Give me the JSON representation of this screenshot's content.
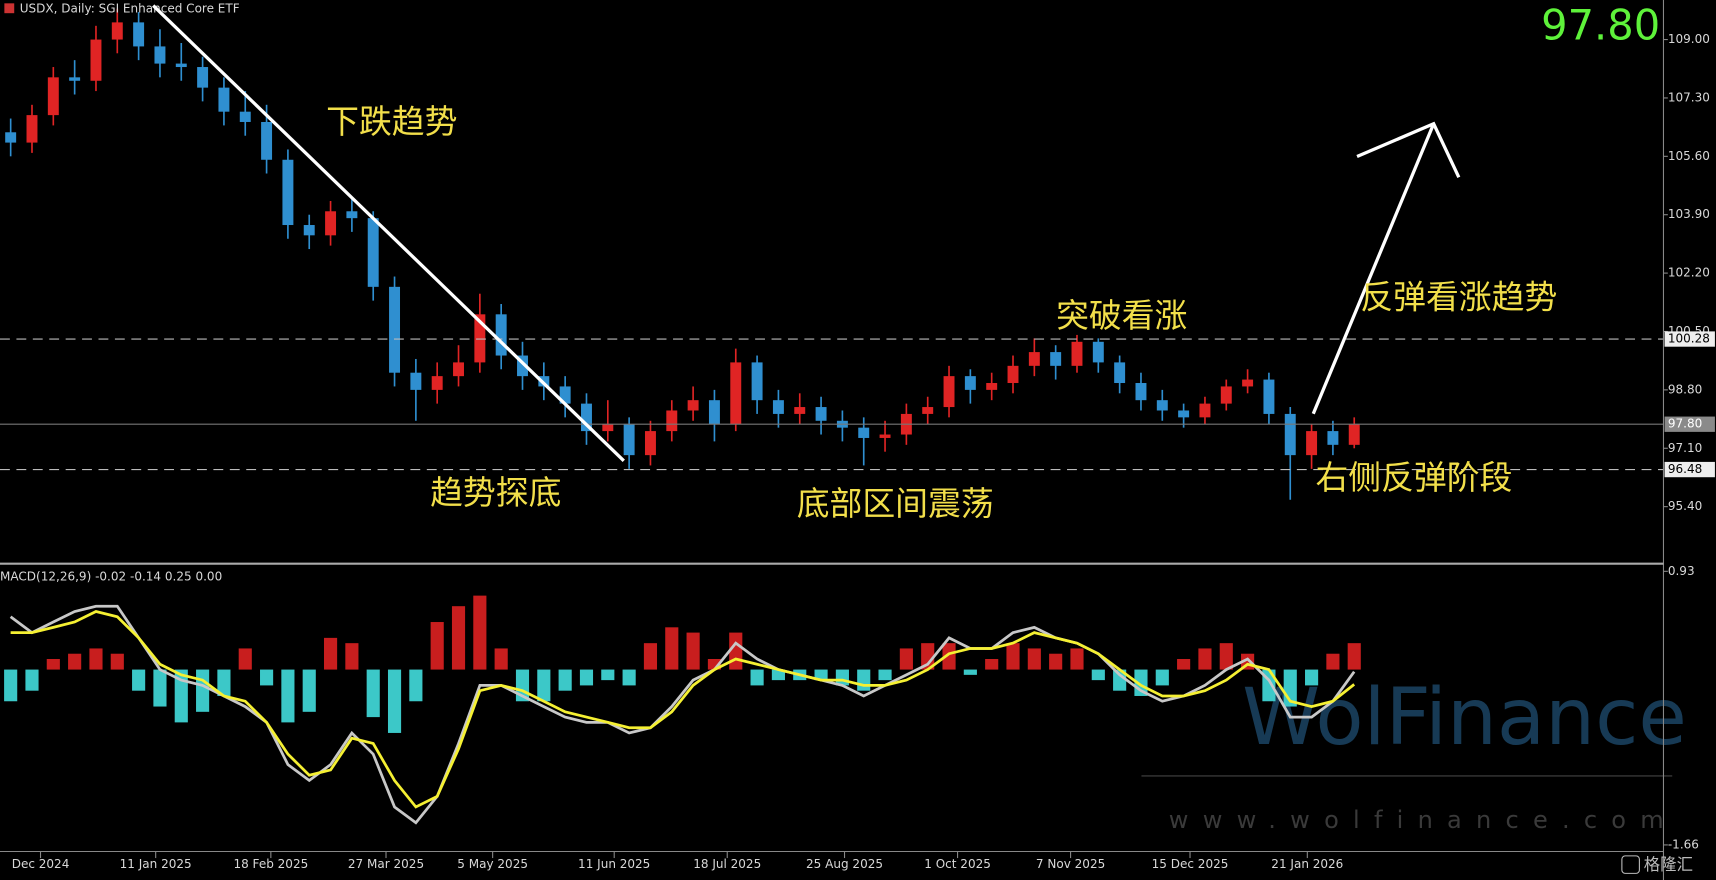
{
  "header": "USDX, Daily:  SGI Enhanced Core ETF",
  "chart_data": [
    {
      "type": "candlestick",
      "open": [
        106.3,
        106.0,
        106.8,
        107.9,
        107.8,
        109.0,
        109.5,
        108.8,
        108.3,
        108.2,
        107.6,
        106.9,
        106.6,
        105.5,
        103.6,
        103.3,
        104.0,
        103.8,
        101.8,
        99.3,
        98.8,
        99.2,
        99.6,
        101.0,
        99.8,
        99.2,
        98.9,
        98.4,
        97.6,
        97.8,
        96.9,
        97.6,
        98.2,
        98.5,
        97.8,
        99.6,
        98.5,
        98.1,
        98.3,
        97.9,
        97.7,
        97.4,
        97.5,
        98.1,
        98.3,
        99.2,
        98.8,
        99.0,
        99.5,
        99.9,
        99.5,
        100.2,
        99.6,
        99.0,
        98.5,
        98.2,
        98.0,
        98.4,
        98.9,
        99.1,
        98.1,
        96.9,
        97.6,
        97.2
      ],
      "high": [
        106.7,
        107.1,
        108.2,
        108.4,
        109.4,
        109.9,
        109.8,
        109.3,
        108.9,
        108.5,
        107.9,
        107.5,
        107.1,
        105.8,
        103.9,
        104.3,
        104.4,
        104.0,
        102.1,
        99.7,
        99.6,
        100.1,
        101.6,
        101.3,
        100.2,
        99.6,
        99.2,
        98.7,
        98.5,
        98.0,
        97.9,
        98.5,
        98.9,
        98.8,
        100.0,
        99.8,
        98.8,
        98.7,
        98.6,
        98.2,
        98.0,
        97.9,
        98.4,
        98.6,
        99.5,
        99.4,
        99.3,
        99.8,
        100.3,
        100.1,
        100.4,
        100.3,
        99.8,
        99.3,
        98.8,
        98.4,
        98.6,
        99.1,
        99.4,
        99.3,
        98.3,
        97.8,
        97.9,
        98.0
      ],
      "low": [
        105.6,
        105.7,
        106.5,
        107.4,
        107.5,
        108.6,
        108.4,
        107.9,
        107.8,
        107.2,
        106.5,
        106.2,
        105.1,
        103.2,
        102.9,
        103.0,
        103.4,
        101.4,
        98.9,
        97.9,
        98.4,
        98.9,
        99.3,
        99.4,
        98.8,
        98.5,
        98.0,
        97.2,
        97.3,
        96.5,
        96.6,
        97.3,
        97.9,
        97.3,
        97.6,
        98.1,
        97.7,
        97.8,
        97.5,
        97.3,
        96.6,
        97.0,
        97.2,
        97.8,
        98.0,
        98.4,
        98.5,
        98.7,
        99.2,
        99.1,
        99.3,
        99.3,
        98.7,
        98.2,
        97.9,
        97.7,
        97.8,
        98.2,
        98.7,
        97.8,
        95.6,
        96.5,
        96.9,
        97.1
      ],
      "close": [
        106.0,
        106.8,
        107.9,
        107.8,
        109.0,
        109.5,
        108.8,
        108.3,
        108.2,
        107.6,
        106.9,
        106.6,
        105.5,
        103.6,
        103.3,
        104.0,
        103.8,
        101.8,
        99.3,
        98.8,
        99.2,
        99.6,
        101.0,
        99.8,
        99.2,
        98.9,
        98.4,
        97.6,
        97.8,
        96.9,
        97.6,
        98.2,
        98.5,
        97.8,
        99.6,
        98.5,
        98.1,
        98.3,
        97.9,
        97.7,
        97.4,
        97.5,
        98.1,
        98.3,
        99.2,
        98.8,
        99.0,
        99.5,
        99.9,
        99.5,
        100.2,
        99.6,
        99.0,
        98.5,
        98.2,
        98.0,
        98.4,
        98.9,
        99.1,
        98.1,
        96.9,
        97.6,
        97.2,
        97.8
      ],
      "up_color": "#e02424",
      "down_color": "#2f8fd0",
      "xlim": [
        -0.5,
        77.5
      ],
      "ylim": [
        93.74,
        110.15
      ],
      "yticks": [
        {
          "value": 109,
          "label": "109.00"
        },
        {
          "value": 107.3,
          "label": "107.30"
        },
        {
          "value": 105.6,
          "label": "105.60"
        },
        {
          "value": 103.9,
          "label": "103.90"
        },
        {
          "value": 102.2,
          "label": "102.20"
        },
        {
          "value": 100.5,
          "label": "100.50"
        },
        {
          "value": 98.8,
          "label": "98.80"
        },
        {
          "value": 97.1,
          "label": "97.10"
        },
        {
          "value": 95.4,
          "label": "95.40"
        }
      ],
      "xticks": [
        {
          "value": 1.4,
          "label": "Dec 2024"
        },
        {
          "value": 6.8,
          "label": "11 Jan 2025"
        },
        {
          "value": 12.2,
          "label": "18 Feb 2025"
        },
        {
          "value": 17.6,
          "label": "27 Mar 2025"
        },
        {
          "value": 22.6,
          "label": "5 May 2025"
        },
        {
          "value": 28.3,
          "label": "11 Jun 2025"
        },
        {
          "value": 33.6,
          "label": "18 Jul 2025"
        },
        {
          "value": 39.1,
          "label": "25 Aug 2025"
        },
        {
          "value": 44.4,
          "label": "1 Oct 2025"
        },
        {
          "value": 49.7,
          "label": "7 Nov 2025"
        },
        {
          "value": 55.3,
          "label": "15 Dec 2025"
        },
        {
          "value": 60.8,
          "label": "21 Jan 2026"
        }
      ],
      "levels": [
        {
          "value": 100.28,
          "label": "100.28",
          "style": "dashed"
        },
        {
          "value": 96.48,
          "label": "96.48",
          "style": "dashed"
        },
        {
          "value": 97.8,
          "label": "97.80",
          "style": "solid"
        }
      ],
      "annotations": [
        "下跌趋势",
        "趋势探底",
        "底部区间震荡",
        "突破看涨",
        "反弹看涨趋势",
        "右侧反弹阶段"
      ]
    },
    {
      "type": "macd",
      "title": "MACD(12,26,9) -0.02 -0.14 0.25 0.00",
      "xlim": [
        -0.5,
        77.5
      ],
      "ylim": [
        -1.66,
        0.93
      ],
      "yticks": [
        {
          "value": 0.93,
          "label": "0.93"
        },
        {
          "value": -1.66,
          "label": "-1.66"
        }
      ],
      "histogram": {
        "up_color": "#c81e1e",
        "down_color": "#3cc8c8",
        "values": [
          -0.3,
          -0.2,
          0.1,
          0.15,
          0.2,
          0.15,
          -0.2,
          -0.35,
          -0.5,
          -0.4,
          -0.25,
          0.2,
          -0.15,
          -0.5,
          -0.4,
          0.3,
          0.25,
          -0.45,
          -0.6,
          -0.3,
          0.45,
          0.6,
          0.7,
          0.2,
          -0.3,
          -0.3,
          -0.2,
          -0.15,
          -0.1,
          -0.15,
          0.25,
          0.4,
          0.35,
          0.1,
          0.35,
          -0.15,
          -0.1,
          -0.1,
          -0.1,
          -0.15,
          -0.2,
          -0.1,
          0.2,
          0.25,
          0.25,
          -0.05,
          0.1,
          0.25,
          0.2,
          0.15,
          0.2,
          -0.1,
          -0.2,
          -0.25,
          -0.15,
          0.1,
          0.2,
          0.25,
          0.15,
          -0.3,
          -0.35,
          -0.15,
          0.15,
          0.25
        ]
      },
      "macd": {
        "color": "#c8c8c8",
        "values": [
          0.5,
          0.35,
          0.45,
          0.55,
          0.6,
          0.6,
          0.3,
          0.0,
          -0.1,
          -0.15,
          -0.25,
          -0.35,
          -0.5,
          -0.9,
          -1.05,
          -0.9,
          -0.6,
          -0.8,
          -1.3,
          -1.45,
          -1.2,
          -0.7,
          -0.15,
          -0.15,
          -0.25,
          -0.35,
          -0.45,
          -0.5,
          -0.5,
          -0.6,
          -0.55,
          -0.35,
          -0.1,
          0.0,
          0.25,
          0.1,
          0.0,
          -0.05,
          -0.1,
          -0.15,
          -0.25,
          -0.15,
          -0.05,
          0.05,
          0.3,
          0.2,
          0.2,
          0.35,
          0.4,
          0.3,
          0.25,
          0.15,
          -0.05,
          -0.2,
          -0.3,
          -0.25,
          -0.15,
          0.0,
          0.1,
          -0.1,
          -0.45,
          -0.45,
          -0.3,
          -0.02
        ]
      },
      "signal": {
        "color": "#f5f032",
        "values": [
          0.35,
          0.35,
          0.4,
          0.45,
          0.55,
          0.5,
          0.3,
          0.05,
          -0.05,
          -0.1,
          -0.25,
          -0.3,
          -0.5,
          -0.8,
          -1.0,
          -0.95,
          -0.65,
          -0.7,
          -1.05,
          -1.3,
          -1.2,
          -0.75,
          -0.2,
          -0.15,
          -0.2,
          -0.3,
          -0.4,
          -0.45,
          -0.5,
          -0.55,
          -0.55,
          -0.4,
          -0.15,
          0.0,
          0.1,
          0.05,
          0.0,
          -0.05,
          -0.1,
          -0.1,
          -0.15,
          -0.15,
          -0.1,
          0.0,
          0.15,
          0.2,
          0.2,
          0.25,
          0.35,
          0.3,
          0.25,
          0.15,
          0.0,
          -0.15,
          -0.25,
          -0.25,
          -0.2,
          -0.1,
          0.05,
          0.0,
          -0.3,
          -0.35,
          -0.3,
          -0.14
        ]
      }
    }
  ],
  "watermark": {
    "brand": "WolFinance",
    "url": "www.wolfinance.com",
    "logo": "格隆汇"
  }
}
